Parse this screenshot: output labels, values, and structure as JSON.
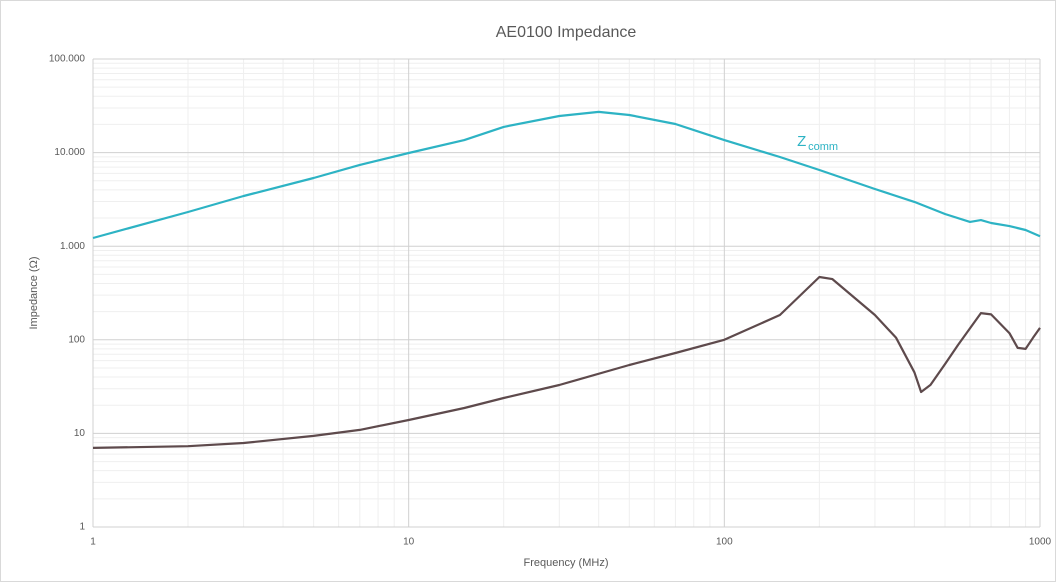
{
  "chart_data": {
    "type": "line",
    "title": "AE0100 Impedance",
    "x_label": "Frequency (MHz)",
    "y_label": "Impedance (Ω)",
    "x_log": true,
    "y_log": true,
    "grid": true,
    "minor_grid": true,
    "xlim": [
      1,
      1000
    ],
    "xticks": [
      1,
      10,
      100,
      1000
    ],
    "ylim": [
      1,
      100000
    ],
    "yticks": [
      1,
      10,
      100,
      {
        "value": 1000,
        "label": "1.000"
      },
      {
        "value": 10000,
        "label": "10.000"
      },
      {
        "value": 100000,
        "label": "100.000"
      }
    ],
    "series": [
      {
        "color": "#2db3c4",
        "x": [
          1,
          2,
          3,
          5,
          7,
          10,
          15,
          20,
          30,
          40,
          50,
          70,
          100,
          150,
          200,
          300,
          400,
          500,
          600,
          650,
          700,
          800,
          900,
          1000
        ],
        "values": [
          1225,
          2320,
          3440,
          5350,
          7380,
          9900,
          13600,
          18800,
          24600,
          27200,
          25200,
          20200,
          13600,
          8980,
          6520,
          4080,
          2970,
          2210,
          1820,
          1900,
          1770,
          1640,
          1490,
          1280
        ]
      },
      {
        "color": "#5e4a4c",
        "x": [
          1,
          2,
          3,
          5,
          7,
          10,
          15,
          20,
          30,
          50,
          70,
          100,
          150,
          200,
          220,
          300,
          350,
          400,
          420,
          450,
          500,
          550,
          650,
          700,
          800,
          850,
          900,
          950,
          1000
        ],
        "values": [
          7,
          7.3,
          7.9,
          9.4,
          10.9,
          13.9,
          18.7,
          23.9,
          32.9,
          53.8,
          72.3,
          100,
          184,
          469,
          445,
          184,
          105,
          45,
          27.7,
          33,
          55,
          88,
          193,
          187,
          118,
          82,
          80,
          105,
          134
        ]
      }
    ],
    "annotations": [
      {
        "text": "Z",
        "subscript": "comm",
        "x": 170,
        "y": 13000,
        "color": "#2db3c4"
      }
    ]
  }
}
